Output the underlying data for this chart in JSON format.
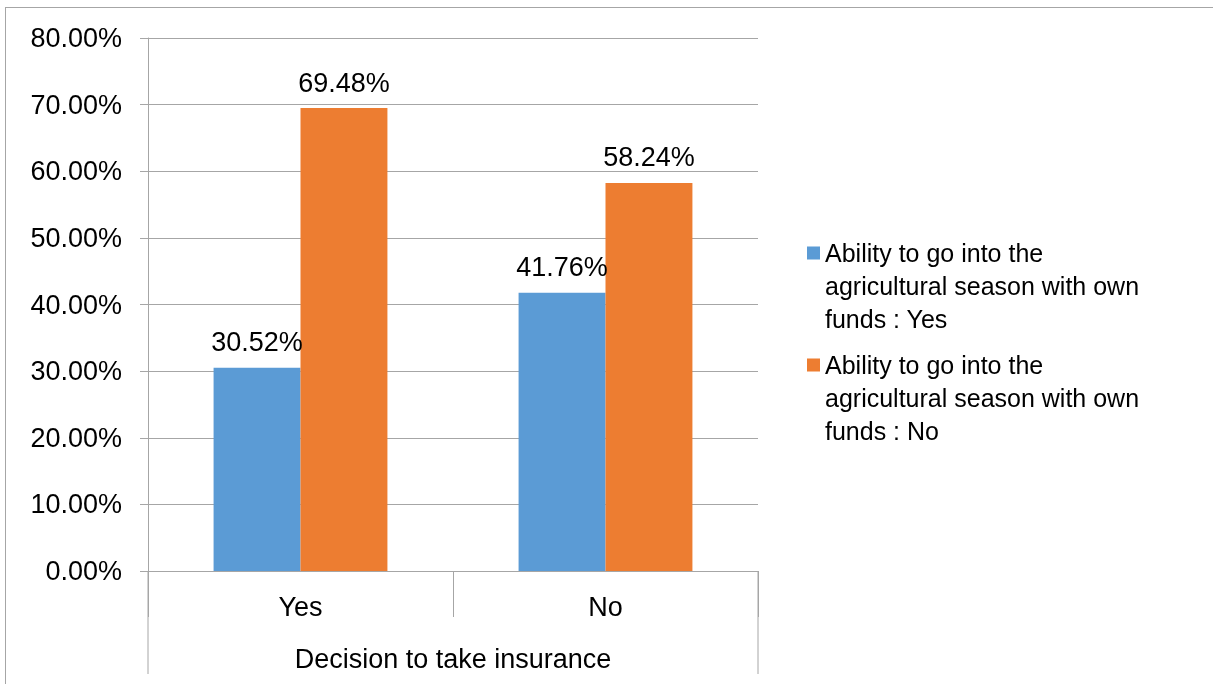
{
  "chart_data": {
    "type": "bar",
    "categories": [
      "Yes",
      "No"
    ],
    "xlabel": "Decision to take insurance",
    "series": [
      {
        "name": "Ability to go into the agricultural season with own funds : Yes",
        "color": "#5b9bd5",
        "values": [
          30.52,
          41.76
        ],
        "value_labels": [
          "30.52%",
          "41.76%"
        ]
      },
      {
        "name": "Ability to go into the agricultural season with own funds : No",
        "color": "#ed7d31",
        "values": [
          69.48,
          58.24
        ],
        "value_labels": [
          "69.48%",
          "58.24%"
        ]
      }
    ],
    "ylim": [
      0,
      80
    ],
    "yticks": [
      {
        "value": 0,
        "label": "0.00%"
      },
      {
        "value": 10,
        "label": "10.00%"
      },
      {
        "value": 20,
        "label": "20.00%"
      },
      {
        "value": 30,
        "label": "30.00%"
      },
      {
        "value": 40,
        "label": "40.00%"
      },
      {
        "value": 50,
        "label": "50.00%"
      },
      {
        "value": 60,
        "label": "60.00%"
      },
      {
        "value": 70,
        "label": "70.00%"
      },
      {
        "value": 80,
        "label": "80.00%"
      }
    ],
    "grid": "y",
    "legend": "right"
  }
}
